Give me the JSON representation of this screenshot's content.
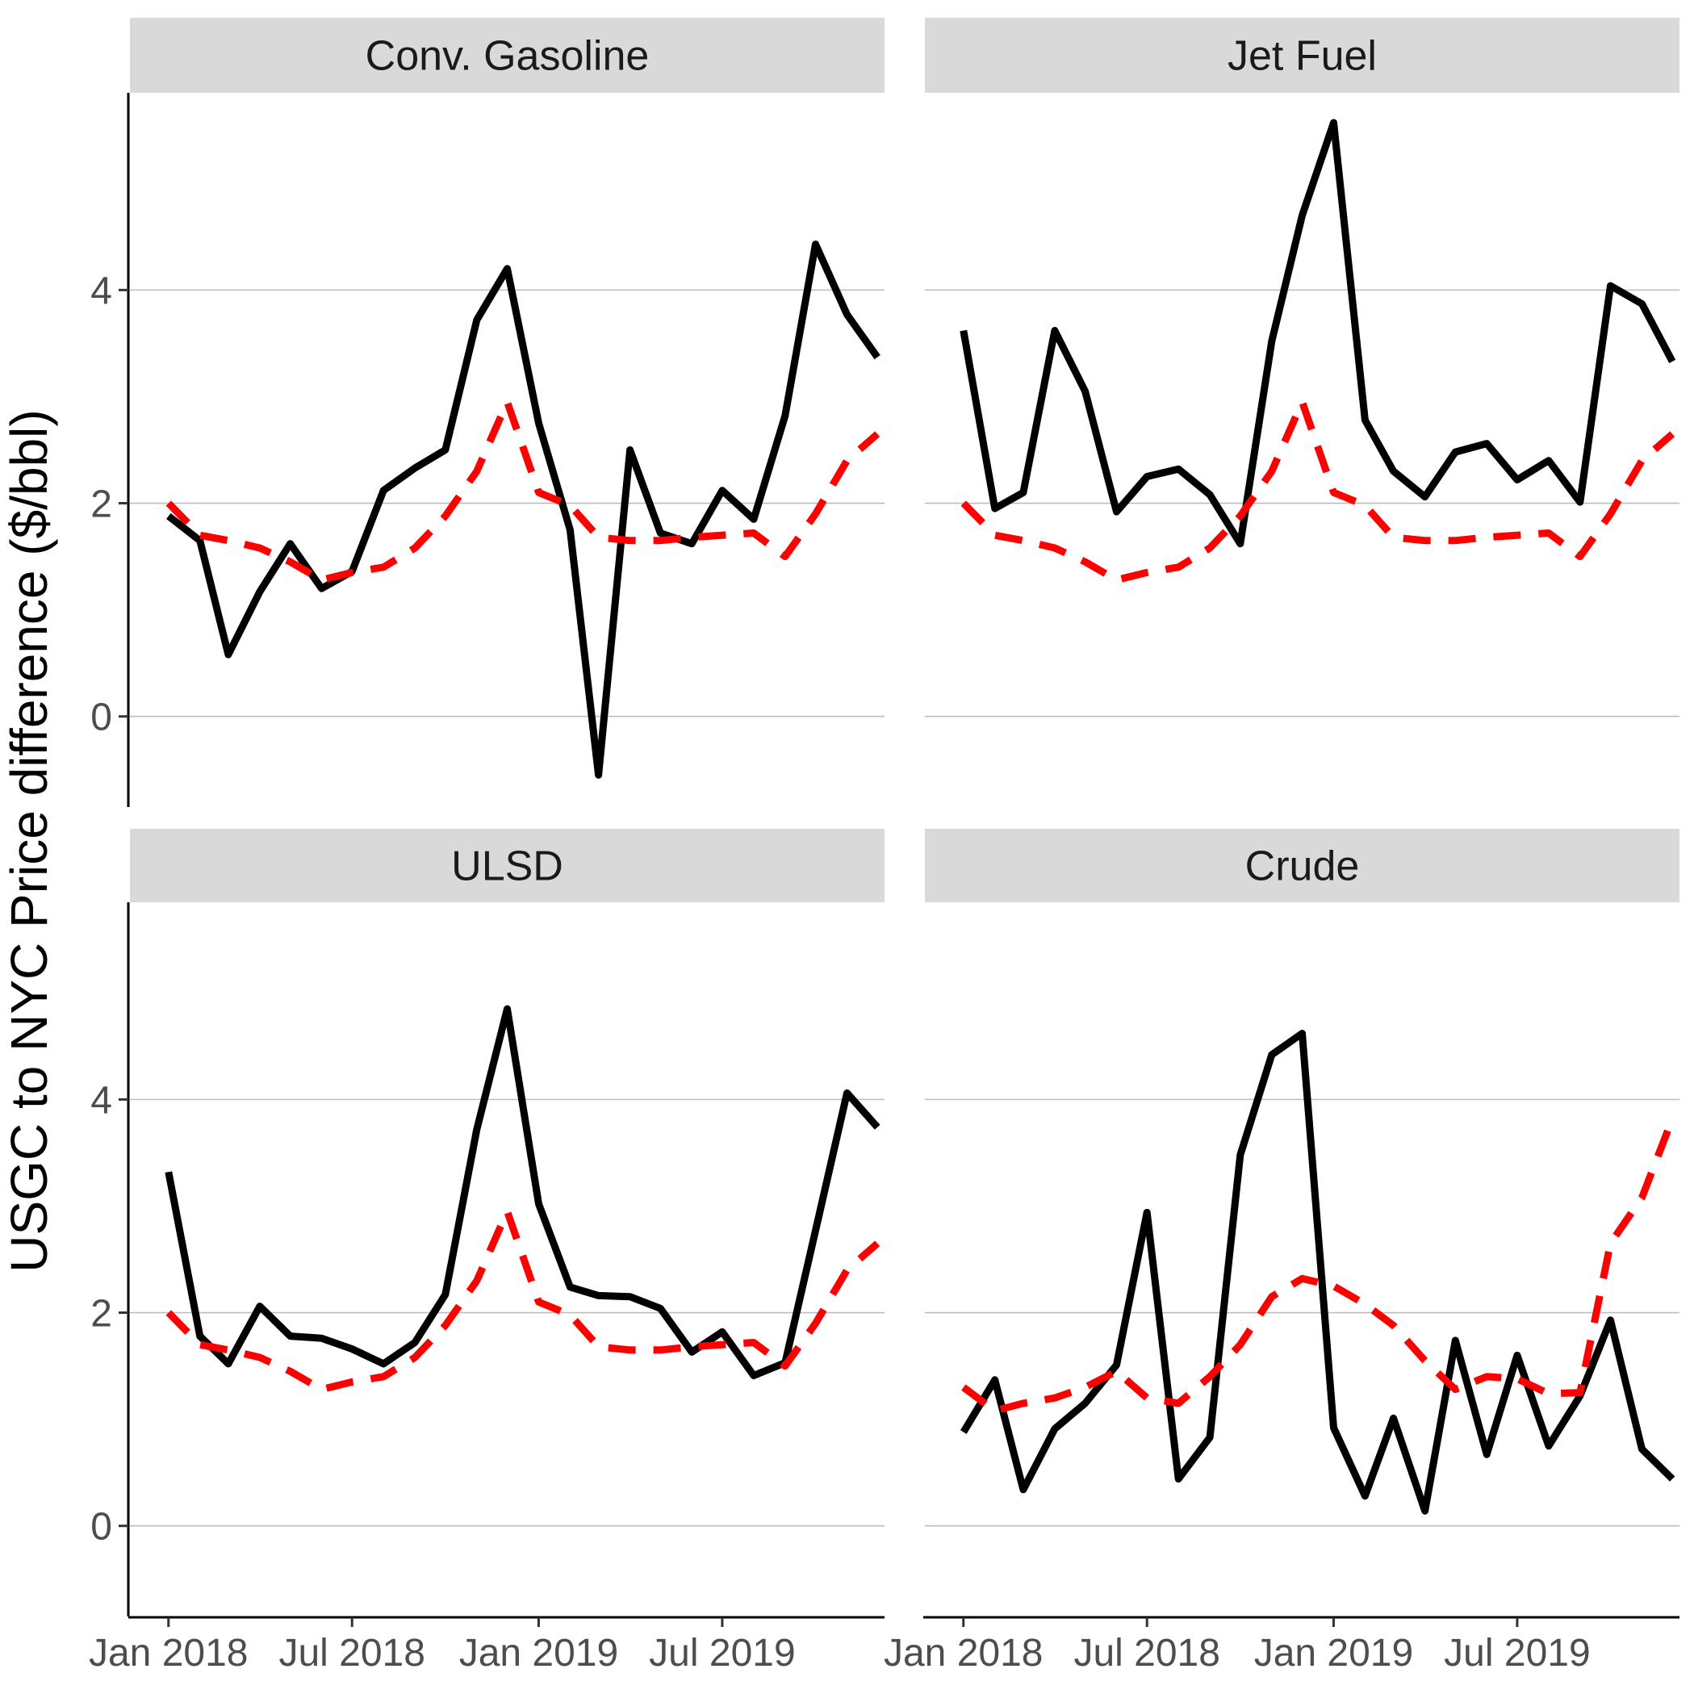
{
  "chart_data": {
    "type": "line",
    "ylabel": "USGC to NYC Price difference ($/bbl)",
    "y_ticks": [
      0,
      2,
      4
    ],
    "ylim": [
      -0.85,
      5.85
    ],
    "x_ticks": [
      {
        "label": "Jan 2018",
        "value": "2018-01"
      },
      {
        "label": "Jul 2018",
        "value": "2018-07"
      },
      {
        "label": "Jan 2019",
        "value": "2019-01"
      },
      {
        "label": "Jul 2019",
        "value": "2019-07"
      }
    ],
    "xlim": [
      "2017-11-24",
      "2019-12-08"
    ],
    "grid": "horizontal-major",
    "colors": {
      "actual": "#000000",
      "model": "#ff0000",
      "strip": "#d9d9d9",
      "grid": "#bdbdbd"
    },
    "x": [
      "2018-01",
      "2018-02",
      "2018-03",
      "2018-04",
      "2018-05",
      "2018-06",
      "2018-07",
      "2018-08",
      "2018-09",
      "2018-10",
      "2018-11",
      "2018-12",
      "2019-01",
      "2019-02",
      "2019-03",
      "2019-04",
      "2019-05",
      "2019-06",
      "2019-07",
      "2019-08",
      "2019-09",
      "2019-10",
      "2019-11",
      "2019-12"
    ],
    "panels": [
      {
        "title": "Conv. Gasoline",
        "series": [
          {
            "style": "solid",
            "values": [
              1.88,
              1.65,
              0.58,
              1.17,
              1.62,
              1.2,
              1.36,
              2.12,
              2.33,
              2.5,
              3.72,
              4.2,
              2.75,
              1.75,
              -0.55,
              2.5,
              1.72,
              1.62,
              2.12,
              1.85,
              2.82,
              4.43,
              3.77,
              3.37
            ]
          },
          {
            "style": "dashed",
            "values": [
              2.0,
              1.7,
              1.65,
              1.58,
              1.45,
              1.28,
              1.35,
              1.4,
              1.58,
              1.88,
              2.3,
              2.95,
              2.1,
              1.98,
              1.68,
              1.65,
              1.65,
              1.68,
              1.7,
              1.72,
              1.5,
              1.9,
              2.4,
              2.65
            ]
          }
        ]
      },
      {
        "title": "Jet Fuel",
        "series": [
          {
            "style": "solid",
            "values": [
              3.62,
              1.95,
              2.1,
              3.62,
              3.05,
              1.92,
              2.25,
              2.32,
              2.08,
              1.62,
              3.52,
              4.7,
              5.57,
              2.78,
              2.3,
              2.06,
              2.48,
              2.56,
              2.22,
              2.4,
              2.01,
              4.04,
              3.87,
              3.33
            ]
          },
          {
            "style": "dashed",
            "values": [
              2.0,
              1.7,
              1.65,
              1.58,
              1.45,
              1.28,
              1.35,
              1.4,
              1.58,
              1.88,
              2.3,
              2.95,
              2.1,
              1.98,
              1.68,
              1.65,
              1.65,
              1.68,
              1.7,
              1.72,
              1.5,
              1.9,
              2.4,
              2.65
            ]
          }
        ]
      },
      {
        "title": "ULSD",
        "series": [
          {
            "style": "solid",
            "values": [
              3.32,
              1.78,
              1.52,
              2.06,
              1.78,
              1.76,
              1.66,
              1.52,
              1.72,
              2.17,
              3.72,
              4.85,
              3.02,
              2.24,
              2.16,
              2.15,
              2.04,
              1.63,
              1.82,
              1.41,
              1.53,
              2.77,
              4.06,
              3.74
            ]
          },
          {
            "style": "dashed",
            "values": [
              2.0,
              1.7,
              1.65,
              1.58,
              1.45,
              1.28,
              1.35,
              1.4,
              1.58,
              1.88,
              2.3,
              2.95,
              2.1,
              1.98,
              1.68,
              1.65,
              1.65,
              1.68,
              1.7,
              1.72,
              1.5,
              1.9,
              2.4,
              2.65
            ]
          }
        ]
      },
      {
        "title": "Crude",
        "series": [
          {
            "style": "solid",
            "values": [
              0.88,
              1.37,
              0.34,
              0.91,
              1.15,
              1.51,
              2.94,
              0.44,
              0.83,
              3.48,
              4.42,
              4.62,
              0.92,
              0.28,
              1.01,
              0.14,
              1.74,
              0.67,
              1.6,
              0.75,
              1.22,
              1.93,
              0.72,
              0.44
            ]
          },
          {
            "style": "dashed",
            "values": [
              1.3,
              1.08,
              1.15,
              1.2,
              1.3,
              1.45,
              1.2,
              1.15,
              1.4,
              1.7,
              2.15,
              2.32,
              2.25,
              2.08,
              1.88,
              1.55,
              1.28,
              1.4,
              1.38,
              1.24,
              1.25,
              2.65,
              3.08,
              3.82
            ]
          }
        ]
      }
    ]
  }
}
